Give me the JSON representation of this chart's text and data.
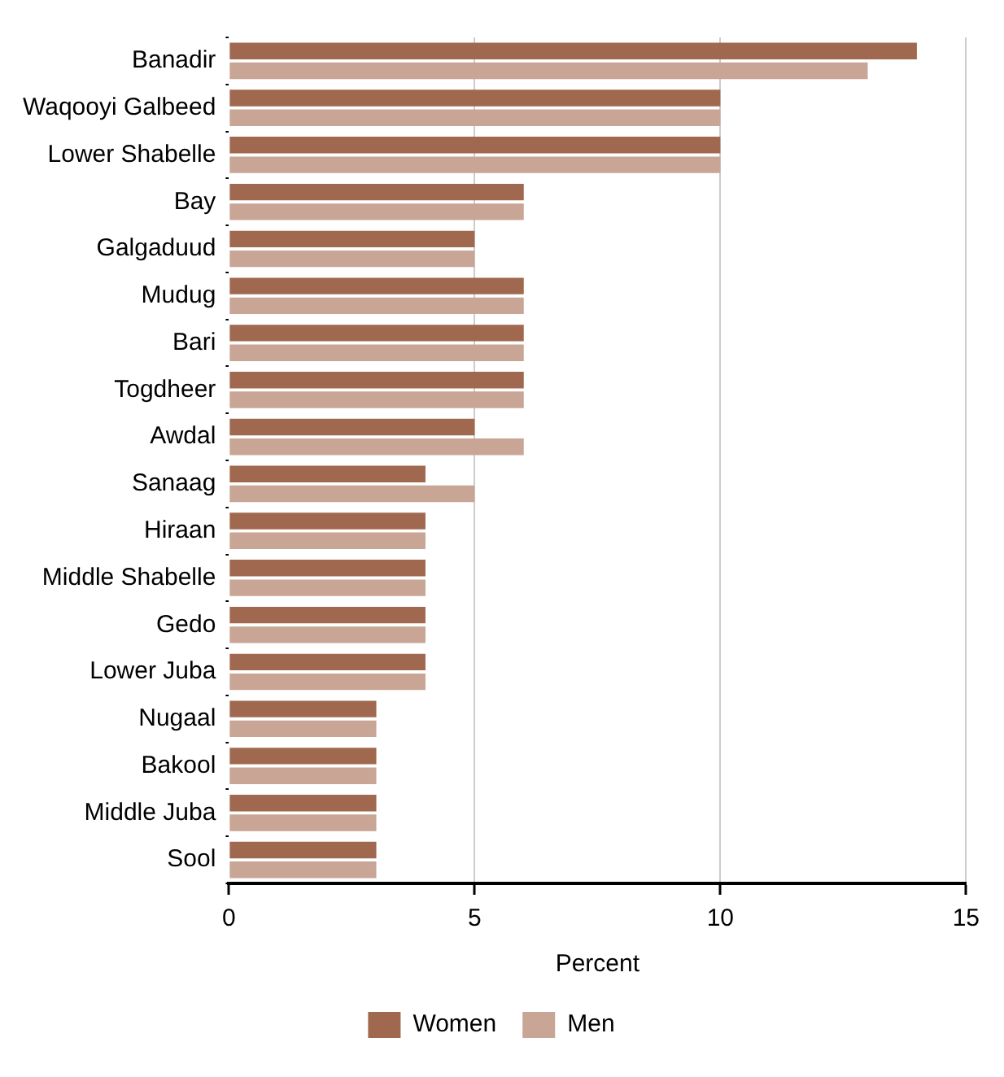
{
  "chart_data": {
    "type": "bar",
    "orientation": "horizontal",
    "xlabel": "Percent",
    "categories": [
      "Banadir",
      "Waqooyi Galbeed",
      "Lower Shabelle",
      "Bay",
      "Galgaduud",
      "Mudug",
      "Bari",
      "Togdheer",
      "Awdal",
      "Sanaag",
      "Hiraan",
      "Middle Shabelle",
      "Gedo",
      "Lower Juba",
      "Nugaal",
      "Bakool",
      "Middle Juba",
      "Sool"
    ],
    "series": [
      {
        "name": "Women",
        "color": "#a0694f",
        "values": [
          14,
          10,
          10,
          6,
          5,
          6,
          6,
          6,
          5,
          4,
          4,
          4,
          4,
          4,
          3,
          3,
          3,
          3
        ]
      },
      {
        "name": "Men",
        "color": "#c8a595",
        "values": [
          13,
          10,
          10,
          6,
          5,
          6,
          6,
          6,
          6,
          5,
          4,
          4,
          4,
          4,
          3,
          3,
          3,
          3
        ]
      }
    ],
    "xlim": [
      0,
      15
    ],
    "xticks": [
      0,
      5,
      10,
      15
    ],
    "grid": "x",
    "legend": "bottom"
  }
}
